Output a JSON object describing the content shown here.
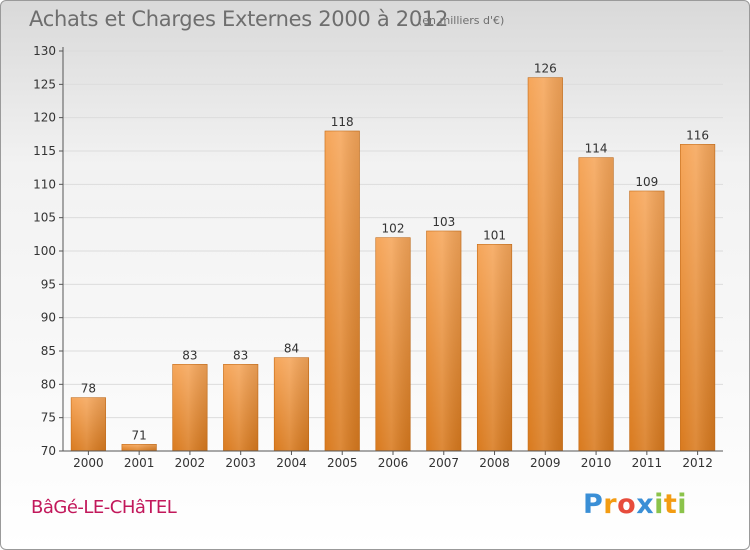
{
  "header": {
    "title": "Achats et Charges Externes 2000 à 2012",
    "subtitle": "(en milliers d'€)"
  },
  "footer": {
    "commune": "BâGé-LE-CHâTEL",
    "logo": {
      "text": "Proxiti",
      "letters": [
        {
          "ch": "P",
          "color": "#3a8fd6"
        },
        {
          "ch": "r",
          "color": "#f39c12"
        },
        {
          "ch": "o",
          "color": "#e74c3c"
        },
        {
          "ch": "x",
          "color": "#3a8fd6"
        },
        {
          "ch": "i",
          "color": "#8bc34a"
        },
        {
          "ch": "t",
          "color": "#f39c12"
        },
        {
          "ch": "i",
          "color": "#8bc34a"
        }
      ]
    }
  },
  "colors": {
    "bar_top": "#f6a65a",
    "bar_bottom": "#d97a1e",
    "grid": "#dcdcdc",
    "axis": "#555555",
    "text": "#333333"
  },
  "chart_data": {
    "type": "bar",
    "title": "Achats et Charges Externes 2000 à 2012",
    "subtitle": "(en milliers d'€)",
    "categories": [
      "2000",
      "2001",
      "2002",
      "2003",
      "2004",
      "2005",
      "2006",
      "2007",
      "2008",
      "2009",
      "2010",
      "2011",
      "2012"
    ],
    "values": [
      78,
      71,
      83,
      83,
      84,
      118,
      102,
      103,
      101,
      126,
      114,
      109,
      116
    ],
    "ylim": [
      70,
      130
    ],
    "yticks": [
      70,
      75,
      80,
      85,
      90,
      95,
      100,
      105,
      110,
      115,
      120,
      125,
      130
    ],
    "grid": true,
    "data_labels": true
  }
}
